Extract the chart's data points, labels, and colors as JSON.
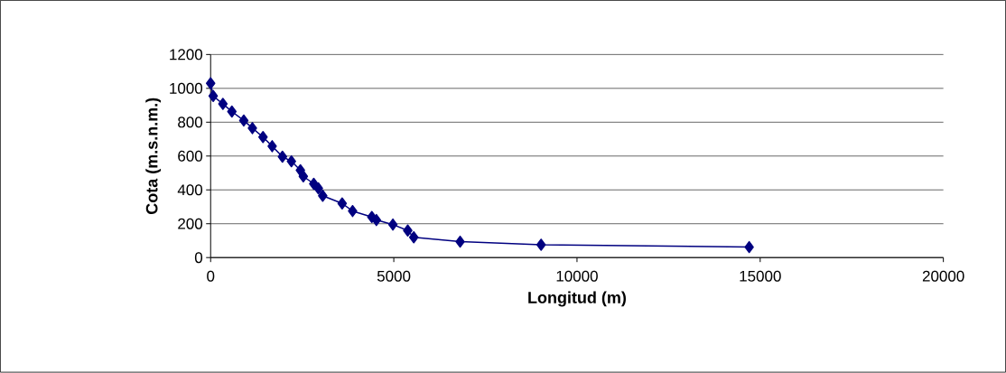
{
  "chart_data": {
    "type": "line",
    "xlabel": "Longitud (m)",
    "ylabel": "Cota (m.s.n.m.)",
    "x": [
      0,
      70,
      335,
      580,
      905,
      1140,
      1430,
      1680,
      1960,
      2205,
      2450,
      2530,
      2815,
      2940,
      3060,
      3590,
      3875,
      4400,
      4525,
      4975,
      5380,
      5545,
      6810,
      9020,
      14700
    ],
    "values": [
      1030,
      955,
      908,
      863,
      810,
      765,
      712,
      658,
      596,
      569,
      516,
      480,
      436,
      409,
      365,
      320,
      275,
      240,
      222,
      195,
      160,
      120,
      94,
      76,
      62
    ],
    "color": "#000080",
    "marker": "diamond",
    "line_style": "solid",
    "grid": "y",
    "xlim": [
      0,
      20000
    ],
    "xticks": [
      0,
      5000,
      10000,
      15000,
      20000
    ],
    "ylim": [
      0,
      1200
    ],
    "yticks": [
      0,
      200,
      400,
      600,
      800,
      1000,
      1200
    ]
  }
}
